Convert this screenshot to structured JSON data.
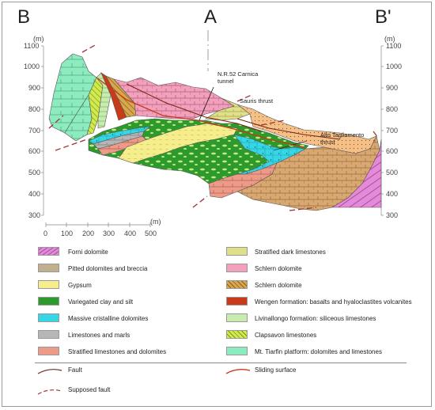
{
  "section_labels": {
    "left": "B",
    "center": "A",
    "right": "B'"
  },
  "axes": {
    "unit": "(m)",
    "elevation_ticks": [
      "1100",
      "1000",
      "900",
      "800",
      "700",
      "600",
      "500",
      "400",
      "300"
    ],
    "distance_ticks": [
      "0",
      "100",
      "200",
      "300",
      "400",
      "500"
    ]
  },
  "annotations": {
    "tunnel_line1": "N.R.52 Carnica",
    "tunnel_line2": "tunnel",
    "sauris": "Sauris thrust",
    "alto_line1": "Alto Tagliamento",
    "alto_line2": "thrust"
  },
  "legend": {
    "left": [
      {
        "label": "Forni dolomite",
        "color": "#e58ad8"
      },
      {
        "label": "Pitted dolomites and breccia",
        "color": "#c0b090"
      },
      {
        "label": "Gypsum",
        "color": "#f6ee8c"
      },
      {
        "label": "Variegated clay and silt",
        "color": "#2c9a2c"
      },
      {
        "label": "Massive cristalline dolomites",
        "color": "#35d6e6"
      },
      {
        "label": "Limestones and marls",
        "color": "#b6b6b6"
      },
      {
        "label": "Stratified limestones and dolomites",
        "color": "#ee9a88"
      }
    ],
    "right": [
      {
        "label": "Stratified dark limestones",
        "color": "#e0e08a"
      },
      {
        "label": "Schlern dolomite",
        "color": "#f2a0bc"
      },
      {
        "label": "Schlern dolomite",
        "color": "#d8a850"
      },
      {
        "label": "Wengen formation: basalts and hyaloclastites volcanites",
        "color": "#c83a1a"
      },
      {
        "label": "Livinallongo formation: siliceous limestones",
        "color": "#c8ecae"
      },
      {
        "label": "Clapsavon limestones",
        "color": "#d2ea50"
      },
      {
        "label": "Mt. Tiarfin platform: dolomites and limestones",
        "color": "#8cecc0"
      }
    ],
    "lines": {
      "fault": "Fault",
      "sliding": "Sliding surface",
      "supposed": "Supposed fault"
    }
  }
}
